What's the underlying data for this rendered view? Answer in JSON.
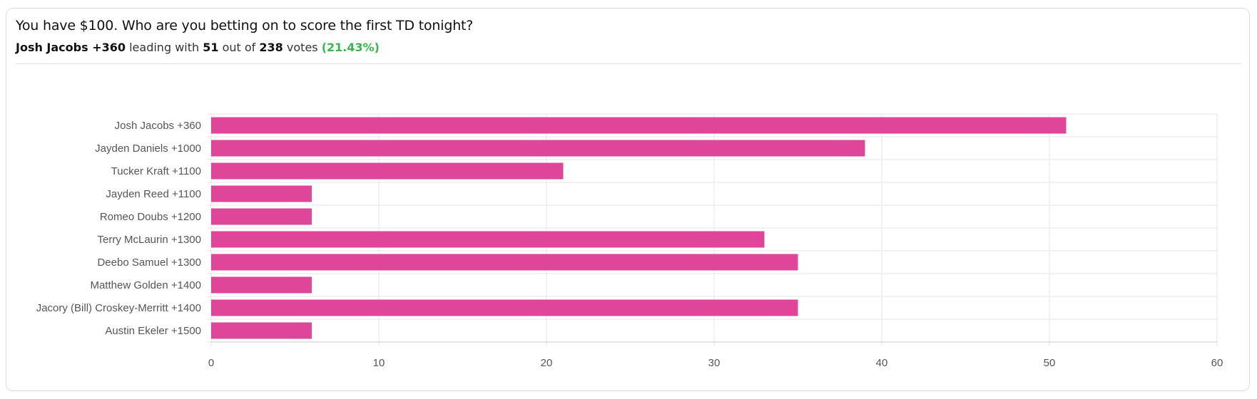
{
  "header": {
    "question": "You have $100. Who are you betting on to score the first TD tonight?",
    "leader_name": "Josh Jacobs +360",
    "leading_text": "leading with",
    "leader_votes": "51",
    "out_of_text": "out of",
    "total_votes": "238",
    "votes_text": "votes",
    "leader_pct": "(21.43%)"
  },
  "colors": {
    "bar": "#df4699",
    "accent_green": "#36b84a",
    "grid": "#e6e6e6"
  },
  "chart_data": {
    "type": "bar",
    "orientation": "horizontal",
    "categories": [
      "Josh Jacobs +360",
      "Jayden Daniels +1000",
      "Tucker Kraft +1100",
      "Jayden Reed +1100",
      "Romeo Doubs +1200",
      "Terry McLaurin +1300",
      "Deebo Samuel +1300",
      "Matthew Golden +1400",
      "Jacory (Bill) Croskey-Merritt +1400",
      "Austin Ekeler +1500"
    ],
    "values": [
      51,
      39,
      21,
      6,
      6,
      33,
      35,
      6,
      35,
      6
    ],
    "xlim": [
      0,
      60
    ],
    "xticks": [
      0,
      10,
      20,
      30,
      40,
      50,
      60
    ],
    "grid": true
  }
}
